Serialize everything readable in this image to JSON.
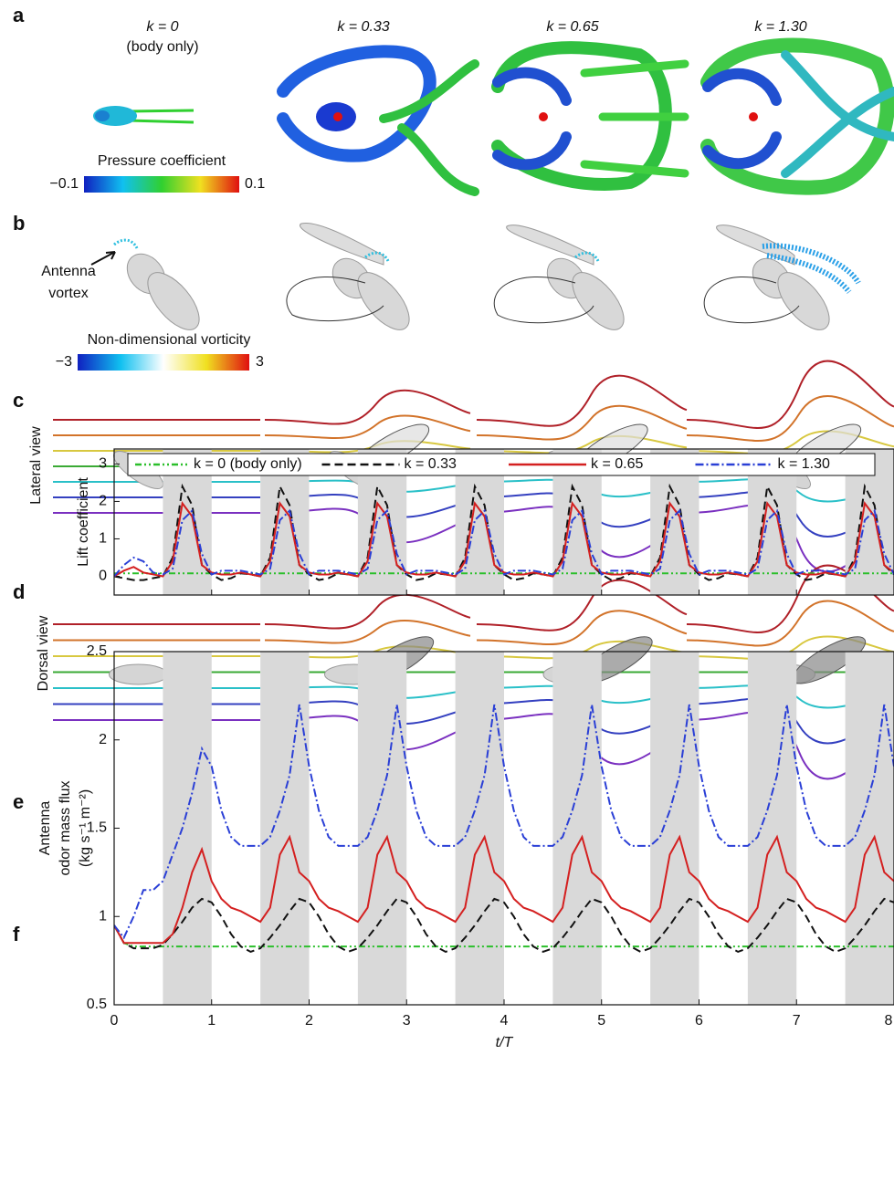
{
  "panels": {
    "letters": [
      "a",
      "b",
      "c",
      "d",
      "e",
      "f"
    ],
    "a": {
      "headers": [
        "k = 0",
        "k = 0.33",
        "k = 0.65",
        "k = 1.30"
      ],
      "subheader": "(body only)",
      "colorbar_title": "Pressure coefficient",
      "colorbar_min": "−0.1",
      "colorbar_max": "0.1"
    },
    "b": {
      "annotation": [
        "Antenna",
        "vortex"
      ],
      "colorbar_title": "Non-dimensional vorticity",
      "colorbar_min": "−3",
      "colorbar_max": "3"
    },
    "c": {
      "side_label": "Lateral view"
    },
    "d": {
      "side_label": "Dorsal view"
    }
  },
  "chart_data": [
    {
      "type": "line",
      "ylabel": "Lift coefficient",
      "legend": "top",
      "x": [
        0,
        0.1,
        0.2,
        0.3,
        0.4,
        0.5,
        0.6,
        0.7,
        0.8,
        0.9,
        1,
        1.1,
        1.2,
        1.3,
        1.4,
        1.5,
        1.6,
        1.7,
        1.8,
        1.9,
        2,
        2.1,
        2.2,
        2.3,
        2.4,
        2.5,
        2.6,
        2.7,
        2.8,
        2.9,
        3,
        3.1,
        3.2,
        3.3,
        3.4,
        3.5,
        3.6,
        3.7,
        3.8,
        3.9,
        4,
        4.1,
        4.2,
        4.3,
        4.4,
        4.5,
        4.6,
        4.7,
        4.8,
        4.9,
        5,
        5.1,
        5.2,
        5.3,
        5.4,
        5.5,
        5.6,
        5.7,
        5.8,
        5.9,
        6,
        6.1,
        6.2,
        6.3,
        6.4,
        6.5,
        6.6,
        6.7,
        6.8,
        6.9,
        7,
        7.1,
        7.2,
        7.3,
        7.4,
        7.5,
        7.6,
        7.7,
        7.8,
        7.9,
        8
      ],
      "xlim": [
        0,
        8
      ],
      "xticks": [
        0,
        1,
        2,
        3,
        4,
        5,
        6,
        7,
        8
      ],
      "xtick_labels": false,
      "ylim": [
        -0.5,
        3.4
      ],
      "yticks": [
        0,
        1,
        2,
        3
      ],
      "shading": [
        [
          0.5,
          1
        ],
        [
          1.5,
          2
        ],
        [
          2.5,
          3
        ],
        [
          3.5,
          4
        ],
        [
          4.5,
          5
        ],
        [
          5.5,
          6
        ],
        [
          6.5,
          7
        ],
        [
          7.5,
          8
        ]
      ],
      "shading_color": "#d9d9d9",
      "series": [
        {
          "name": "k = 0 (body only)",
          "color": "#2bbf2b",
          "dash": "7 3 2 3 2 3",
          "values": [
            0.08,
            0.08,
            0.08,
            0.08,
            0.08,
            0.08,
            0.08,
            0.08,
            0.08,
            0.08,
            0.08,
            0.08,
            0.08,
            0.08,
            0.08,
            0.08,
            0.08,
            0.08,
            0.08,
            0.08,
            0.08,
            0.08,
            0.08,
            0.08,
            0.08,
            0.08,
            0.08,
            0.08,
            0.08,
            0.08,
            0.08,
            0.08,
            0.08,
            0.08,
            0.08,
            0.08,
            0.08,
            0.08,
            0.08,
            0.08,
            0.08,
            0.08,
            0.08,
            0.08,
            0.08,
            0.08,
            0.08,
            0.08,
            0.08,
            0.08,
            0.08,
            0.08,
            0.08,
            0.08,
            0.08,
            0.08,
            0.08,
            0.08,
            0.08,
            0.08,
            0.08,
            0.08,
            0.08,
            0.08,
            0.08,
            0.08,
            0.08,
            0.08,
            0.08,
            0.08,
            0.08,
            0.08,
            0.08,
            0.08,
            0.08,
            0.08,
            0.08,
            0.08,
            0.08,
            0.08,
            0.08
          ]
        },
        {
          "name": "k = 0.33",
          "color": "#111111",
          "dash": "9 5",
          "values": [
            0,
            -0.05,
            -0.1,
            -0.1,
            -0.05,
            0,
            0.5,
            2.4,
            1.9,
            0.3,
            0.05,
            -0.1,
            -0.05,
            0.08,
            0.05,
            0,
            0.5,
            2.4,
            1.9,
            0.3,
            0.05,
            -0.1,
            -0.05,
            0.08,
            0.05,
            0,
            0.5,
            2.4,
            1.9,
            0.3,
            0.05,
            -0.1,
            -0.05,
            0.08,
            0.05,
            0,
            0.5,
            2.4,
            1.9,
            0.3,
            0.05,
            -0.1,
            -0.05,
            0.08,
            0.05,
            0,
            0.5,
            2.4,
            1.9,
            0.3,
            0.05,
            -0.1,
            -0.05,
            0.08,
            0.05,
            0,
            0.5,
            2.4,
            1.9,
            0.3,
            0.05,
            -0.1,
            -0.05,
            0.08,
            0.05,
            0,
            0.5,
            2.4,
            1.9,
            0.3,
            0.05,
            -0.1,
            -0.05,
            0.08,
            0.05,
            0,
            0.5,
            2.4,
            1.9,
            0.3,
            0.05
          ]
        },
        {
          "name": "k = 0.65",
          "color": "#d42020",
          "dash": "",
          "values": [
            0,
            0.15,
            0.25,
            0.1,
            0.05,
            0,
            0.4,
            1.95,
            1.6,
            0.3,
            0.1,
            0.05,
            0.05,
            0.1,
            0.05,
            0,
            0.4,
            1.95,
            1.6,
            0.3,
            0.1,
            0.05,
            0.05,
            0.1,
            0.05,
            0,
            0.4,
            1.95,
            1.6,
            0.3,
            0.1,
            0.05,
            0.05,
            0.1,
            0.05,
            0,
            0.4,
            1.95,
            1.6,
            0.3,
            0.1,
            0.05,
            0.05,
            0.1,
            0.05,
            0,
            0.4,
            1.95,
            1.6,
            0.3,
            0.1,
            0.05,
            0.05,
            0.1,
            0.05,
            0,
            0.4,
            1.95,
            1.6,
            0.3,
            0.1,
            0.05,
            0.05,
            0.1,
            0.05,
            0,
            0.4,
            1.95,
            1.6,
            0.3,
            0.1,
            0.05,
            0.05,
            0.1,
            0.05,
            0,
            0.4,
            1.95,
            1.6,
            0.3,
            0.1
          ]
        },
        {
          "name": "k = 1.30",
          "color": "#2a3fd6",
          "dash": "9 3 2 3",
          "values": [
            0,
            0.3,
            0.5,
            0.4,
            0.1,
            0.05,
            0.2,
            1.5,
            1.75,
            0.6,
            0.05,
            0.15,
            0.15,
            0.15,
            0.1,
            0.05,
            0.2,
            1.5,
            1.75,
            0.6,
            0.05,
            0.15,
            0.15,
            0.15,
            0.1,
            0.05,
            0.2,
            1.5,
            1.75,
            0.6,
            0.05,
            0.15,
            0.15,
            0.15,
            0.1,
            0.05,
            0.2,
            1.5,
            1.75,
            0.6,
            0.05,
            0.15,
            0.15,
            0.15,
            0.1,
            0.05,
            0.2,
            1.5,
            1.75,
            0.6,
            0.05,
            0.15,
            0.15,
            0.15,
            0.1,
            0.05,
            0.2,
            1.5,
            1.75,
            0.6,
            0.05,
            0.15,
            0.15,
            0.15,
            0.1,
            0.05,
            0.2,
            1.5,
            1.75,
            0.6,
            0.05,
            0.15,
            0.15,
            0.15,
            0.1,
            0.05,
            0.2,
            1.5,
            1.75,
            0.6,
            0.05
          ]
        }
      ]
    },
    {
      "type": "line",
      "ylabel": [
        "Antenna",
        "odor mass flux",
        "(kg s⁻¹ m⁻²)"
      ],
      "xlabel": "t/T",
      "x": [
        0,
        0.1,
        0.2,
        0.3,
        0.4,
        0.5,
        0.6,
        0.7,
        0.8,
        0.9,
        1,
        1.1,
        1.2,
        1.3,
        1.4,
        1.5,
        1.6,
        1.7,
        1.8,
        1.9,
        2,
        2.1,
        2.2,
        2.3,
        2.4,
        2.5,
        2.6,
        2.7,
        2.8,
        2.9,
        3,
        3.1,
        3.2,
        3.3,
        3.4,
        3.5,
        3.6,
        3.7,
        3.8,
        3.9,
        4,
        4.1,
        4.2,
        4.3,
        4.4,
        4.5,
        4.6,
        4.7,
        4.8,
        4.9,
        5,
        5.1,
        5.2,
        5.3,
        5.4,
        5.5,
        5.6,
        5.7,
        5.8,
        5.9,
        6,
        6.1,
        6.2,
        6.3,
        6.4,
        6.5,
        6.6,
        6.7,
        6.8,
        6.9,
        7,
        7.1,
        7.2,
        7.3,
        7.4,
        7.5,
        7.6,
        7.7,
        7.8,
        7.9,
        8
      ],
      "xlim": [
        0,
        8
      ],
      "xticks": [
        0,
        1,
        2,
        3,
        4,
        5,
        6,
        7,
        8
      ],
      "xtick_labels": true,
      "ylim": [
        0.5,
        2.5
      ],
      "yticks": [
        0.5,
        1,
        1.5,
        2,
        2.5
      ],
      "shading": [
        [
          0.5,
          1
        ],
        [
          1.5,
          2
        ],
        [
          2.5,
          3
        ],
        [
          3.5,
          4
        ],
        [
          4.5,
          5
        ],
        [
          5.5,
          6
        ],
        [
          6.5,
          7
        ],
        [
          7.5,
          8
        ]
      ],
      "shading_color": "#d9d9d9",
      "series": [
        {
          "color": "#2bbf2b",
          "dash": "7 3 2 3 2 3",
          "values": [
            0.95,
            0.85,
            0.83,
            0.83,
            0.83,
            0.83,
            0.83,
            0.83,
            0.83,
            0.83,
            0.83,
            0.83,
            0.83,
            0.83,
            0.83,
            0.83,
            0.83,
            0.83,
            0.83,
            0.83,
            0.83,
            0.83,
            0.83,
            0.83,
            0.83,
            0.83,
            0.83,
            0.83,
            0.83,
            0.83,
            0.83,
            0.83,
            0.83,
            0.83,
            0.83,
            0.83,
            0.83,
            0.83,
            0.83,
            0.83,
            0.83,
            0.83,
            0.83,
            0.83,
            0.83,
            0.83,
            0.83,
            0.83,
            0.83,
            0.83,
            0.83,
            0.83,
            0.83,
            0.83,
            0.83,
            0.83,
            0.83,
            0.83,
            0.83,
            0.83,
            0.83,
            0.83,
            0.83,
            0.83,
            0.83,
            0.83,
            0.83,
            0.83,
            0.83,
            0.83,
            0.83,
            0.83,
            0.83,
            0.83,
            0.83,
            0.83,
            0.83,
            0.83,
            0.83,
            0.83,
            0.83
          ]
        },
        {
          "color": "#111111",
          "dash": "9 5",
          "values": [
            0.95,
            0.85,
            0.82,
            0.82,
            0.82,
            0.84,
            0.9,
            0.97,
            1.05,
            1.1,
            1.08,
            1,
            0.9,
            0.83,
            0.8,
            0.82,
            0.88,
            0.95,
            1.03,
            1.1,
            1.08,
            1,
            0.9,
            0.83,
            0.8,
            0.82,
            0.88,
            0.95,
            1.03,
            1.1,
            1.08,
            1,
            0.9,
            0.83,
            0.8,
            0.82,
            0.88,
            0.95,
            1.03,
            1.1,
            1.08,
            1,
            0.9,
            0.83,
            0.8,
            0.82,
            0.88,
            0.95,
            1.03,
            1.1,
            1.08,
            1,
            0.9,
            0.83,
            0.8,
            0.82,
            0.88,
            0.95,
            1.03,
            1.1,
            1.08,
            1,
            0.9,
            0.83,
            0.8,
            0.82,
            0.88,
            0.95,
            1.03,
            1.1,
            1.08,
            1,
            0.9,
            0.83,
            0.8,
            0.82,
            0.88,
            0.95,
            1.03,
            1.1,
            1.08
          ]
        },
        {
          "color": "#d42020",
          "dash": "",
          "values": [
            0.95,
            0.85,
            0.85,
            0.85,
            0.85,
            0.85,
            0.9,
            1.05,
            1.25,
            1.38,
            1.2,
            1.1,
            1.05,
            1.03,
            1,
            0.97,
            1.05,
            1.35,
            1.45,
            1.25,
            1.2,
            1.1,
            1.05,
            1.03,
            1,
            0.97,
            1.05,
            1.35,
            1.45,
            1.25,
            1.2,
            1.1,
            1.05,
            1.03,
            1,
            0.97,
            1.05,
            1.35,
            1.45,
            1.25,
            1.2,
            1.1,
            1.05,
            1.03,
            1,
            0.97,
            1.05,
            1.35,
            1.45,
            1.25,
            1.2,
            1.1,
            1.05,
            1.03,
            1,
            0.97,
            1.05,
            1.35,
            1.45,
            1.25,
            1.2,
            1.1,
            1.05,
            1.03,
            1,
            0.97,
            1.05,
            1.35,
            1.45,
            1.25,
            1.2,
            1.1,
            1.05,
            1.03,
            1,
            0.97,
            1.05,
            1.35,
            1.45,
            1.25,
            1.2
          ]
        },
        {
          "color": "#2a3fd6",
          "dash": "9 3 2 3",
          "values": [
            0.95,
            0.88,
            1,
            1.15,
            1.15,
            1.2,
            1.35,
            1.5,
            1.7,
            1.95,
            1.85,
            1.6,
            1.45,
            1.4,
            1.4,
            1.4,
            1.45,
            1.6,
            1.8,
            2.2,
            1.85,
            1.6,
            1.45,
            1.4,
            1.4,
            1.4,
            1.45,
            1.6,
            1.8,
            2.2,
            1.85,
            1.6,
            1.45,
            1.4,
            1.4,
            1.4,
            1.45,
            1.6,
            1.8,
            2.2,
            1.85,
            1.6,
            1.45,
            1.4,
            1.4,
            1.4,
            1.45,
            1.6,
            1.8,
            2.2,
            1.85,
            1.6,
            1.45,
            1.4,
            1.4,
            1.4,
            1.45,
            1.6,
            1.8,
            2.2,
            1.85,
            1.6,
            1.45,
            1.4,
            1.4,
            1.4,
            1.45,
            1.6,
            1.8,
            2.2,
            1.85,
            1.6,
            1.45,
            1.4,
            1.4,
            1.4,
            1.45,
            1.6,
            1.8,
            2.2,
            1.85
          ]
        }
      ]
    }
  ]
}
